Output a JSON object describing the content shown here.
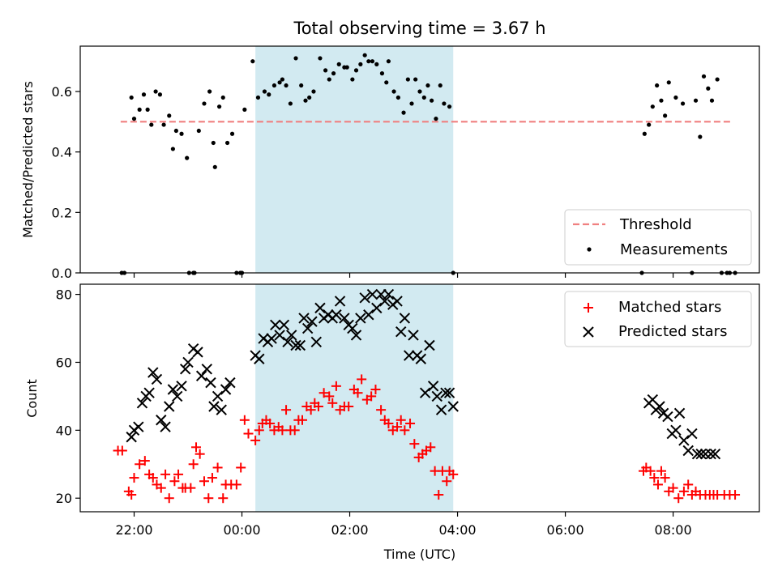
{
  "chart_data": [
    {
      "type": "scatter",
      "title": "Total observing time = 3.67 h",
      "xlabel": "",
      "ylabel": "Matched/Predicted stars",
      "xlim": [
        -3.0,
        9.6
      ],
      "ylim": [
        0,
        0.75
      ],
      "yticks": [
        0.0,
        0.2,
        0.4,
        0.6
      ],
      "ytick_labels": [
        "0.0",
        "0.2",
        "0.4",
        "0.6"
      ],
      "grid": false,
      "legend_position": "lower-right",
      "shaded_region": {
        "x_start": 0.25,
        "x_end": 3.92,
        "color": "#add8e6"
      },
      "colors": {
        "threshold": "#f08080",
        "measurements": "#000000"
      },
      "series": [
        {
          "name": "Threshold",
          "kind": "dashed-line",
          "x": [
            -2.25,
            9.1
          ],
          "y": [
            0.5,
            0.5
          ]
        },
        {
          "name": "Measurements",
          "kind": "points",
          "x": [
            -2.23,
            -2.18,
            -2.05,
            -2.0,
            -1.9,
            -1.82,
            -1.75,
            -1.68,
            -1.6,
            -1.52,
            -1.45,
            -1.35,
            -1.28,
            -1.22,
            -1.12,
            -1.02,
            -0.98,
            -0.9,
            -0.88,
            -0.8,
            -0.7,
            -0.6,
            -0.53,
            -0.5,
            -0.42,
            -0.35,
            -0.27,
            -0.18,
            -0.1,
            -0.03,
            0.0,
            0.05,
            0.2,
            0.3,
            0.42,
            0.5,
            0.6,
            0.7,
            0.75,
            0.82,
            0.9,
            1.0,
            1.1,
            1.18,
            1.25,
            1.33,
            1.45,
            1.55,
            1.62,
            1.7,
            1.8,
            1.9,
            1.95,
            2.05,
            2.12,
            2.2,
            2.28,
            2.35,
            2.42,
            2.5,
            2.6,
            2.68,
            2.72,
            2.82,
            2.9,
            3.0,
            3.08,
            3.15,
            3.22,
            3.3,
            3.38,
            3.45,
            3.52,
            3.6,
            3.68,
            3.75,
            3.85,
            3.92,
            7.42,
            7.47,
            7.55,
            7.62,
            7.7,
            7.78,
            7.85,
            7.92,
            8.05,
            8.18,
            8.35,
            8.42,
            8.5,
            8.57,
            8.65,
            8.72,
            8.82,
            8.9,
            9.0,
            9.05,
            9.15
          ],
          "y": [
            0.0,
            0.0,
            0.58,
            0.51,
            0.54,
            0.59,
            0.54,
            0.49,
            0.6,
            0.59,
            0.49,
            0.52,
            0.41,
            0.47,
            0.46,
            0.38,
            0.0,
            0.0,
            0.0,
            0.47,
            0.56,
            0.6,
            0.43,
            0.35,
            0.55,
            0.58,
            0.43,
            0.46,
            0.0,
            0.0,
            0.0,
            0.54,
            0.7,
            0.58,
            0.6,
            0.59,
            0.62,
            0.63,
            0.64,
            0.62,
            0.56,
            0.71,
            0.62,
            0.57,
            0.58,
            0.6,
            0.71,
            0.67,
            0.64,
            0.66,
            0.69,
            0.68,
            0.68,
            0.64,
            0.67,
            0.69,
            0.72,
            0.7,
            0.7,
            0.69,
            0.66,
            0.63,
            0.7,
            0.6,
            0.58,
            0.53,
            0.64,
            0.56,
            0.64,
            0.6,
            0.58,
            0.62,
            0.57,
            0.51,
            0.62,
            0.56,
            0.55,
            0.0,
            0.0,
            0.46,
            0.49,
            0.55,
            0.62,
            0.57,
            0.52,
            0.63,
            0.58,
            0.56,
            0.0,
            0.57,
            0.45,
            0.65,
            0.61,
            0.57,
            0.64,
            0.0,
            0.0,
            0.0,
            0.0
          ]
        }
      ]
    },
    {
      "type": "scatter",
      "title": "",
      "xlabel": "Time (UTC)",
      "ylabel": "Count",
      "xlim": [
        -3.0,
        9.6
      ],
      "ylim": [
        16,
        83
      ],
      "xticks": [
        -2.0,
        0.0,
        2.0,
        4.0,
        6.0,
        8.0
      ],
      "xtick_labels": [
        "22:00",
        "00:00",
        "02:00",
        "04:00",
        "06:00",
        "08:00"
      ],
      "yticks": [
        20,
        40,
        60,
        80
      ],
      "ytick_labels": [
        "20",
        "40",
        "60",
        "80"
      ],
      "grid": false,
      "legend_position": "upper-right",
      "shaded_region": {
        "x_start": 0.25,
        "x_end": 3.92,
        "color": "#add8e6"
      },
      "colors": {
        "matched": "#ff0000",
        "predicted": "#000000"
      },
      "series": [
        {
          "name": "Matched stars",
          "kind": "plus",
          "x": [
            -2.3,
            -2.22,
            -2.1,
            -2.05,
            -2.0,
            -1.9,
            -1.8,
            -1.72,
            -1.65,
            -1.58,
            -1.5,
            -1.42,
            -1.35,
            -1.25,
            -1.18,
            -1.1,
            -1.05,
            -0.95,
            -0.9,
            -0.85,
            -0.78,
            -0.7,
            -0.62,
            -0.55,
            -0.45,
            -0.35,
            -0.3,
            -0.2,
            -0.1,
            -0.02,
            0.05,
            0.12,
            0.25,
            0.32,
            0.38,
            0.45,
            0.52,
            0.6,
            0.68,
            0.75,
            0.82,
            0.9,
            0.98,
            1.05,
            1.12,
            1.2,
            1.28,
            1.35,
            1.42,
            1.52,
            1.62,
            1.68,
            1.75,
            1.82,
            1.9,
            1.98,
            2.08,
            2.15,
            2.22,
            2.32,
            2.4,
            2.48,
            2.58,
            2.65,
            2.72,
            2.8,
            2.88,
            2.95,
            3.02,
            3.12,
            3.2,
            3.28,
            3.35,
            3.42,
            3.5,
            3.58,
            3.65,
            3.72,
            3.8,
            3.85,
            3.92,
            7.45,
            7.5,
            7.58,
            7.65,
            7.72,
            7.78,
            7.85,
            7.92,
            8.0,
            8.1,
            8.2,
            8.28,
            8.35,
            8.42,
            8.5,
            8.6,
            8.68,
            8.75,
            8.82,
            8.95,
            9.05,
            9.15
          ],
          "y": [
            34,
            34,
            22,
            21,
            26,
            30,
            31,
            27,
            26,
            24,
            23,
            27,
            20,
            25,
            27,
            23,
            23,
            23,
            30,
            35,
            33,
            25,
            20,
            26,
            29,
            20,
            24,
            24,
            24,
            29,
            43,
            39,
            37,
            40,
            42,
            43,
            42,
            40,
            41,
            40,
            46,
            40,
            40,
            43,
            43,
            47,
            46,
            48,
            47,
            51,
            50,
            48,
            53,
            46,
            47,
            47,
            52,
            51,
            55,
            49,
            50,
            52,
            46,
            43,
            42,
            40,
            41,
            43,
            40,
            42,
            36,
            32,
            33,
            34,
            35,
            28,
            21,
            28,
            25,
            28,
            27,
            28,
            29,
            28,
            26,
            24,
            28,
            26,
            22,
            23,
            20,
            22,
            24,
            21,
            22,
            21,
            21,
            21,
            21,
            21,
            21,
            21,
            21
          ],
          "note": ""
        },
        {
          "name": "Predicted stars",
          "kind": "x",
          "x": [
            -2.05,
            -2.0,
            -1.92,
            -1.85,
            -1.78,
            -1.72,
            -1.65,
            -1.58,
            -1.5,
            -1.42,
            -1.35,
            -1.28,
            -1.2,
            -1.12,
            -1.05,
            -1.0,
            -0.9,
            -0.82,
            -0.75,
            -0.65,
            -0.58,
            -0.52,
            -0.45,
            -0.38,
            -0.3,
            -0.22,
            0.25,
            0.32,
            0.4,
            0.48,
            0.55,
            0.62,
            0.7,
            0.78,
            0.85,
            0.92,
            1.0,
            1.08,
            1.15,
            1.22,
            1.3,
            1.38,
            1.45,
            1.52,
            1.6,
            1.68,
            1.75,
            1.82,
            1.9,
            1.98,
            2.05,
            2.12,
            2.2,
            2.28,
            2.35,
            2.42,
            2.5,
            2.58,
            2.65,
            2.72,
            2.8,
            2.88,
            2.95,
            3.02,
            3.1,
            3.18,
            3.25,
            3.32,
            3.4,
            3.48,
            3.55,
            3.62,
            3.7,
            3.78,
            3.85,
            3.92,
            7.55,
            7.62,
            7.68,
            7.75,
            7.82,
            7.9,
            7.98,
            8.05,
            8.12,
            8.2,
            8.28,
            8.35,
            8.45,
            8.52,
            8.6,
            8.7,
            8.78
          ],
          "y": [
            38,
            40,
            41,
            48,
            50,
            51,
            57,
            55,
            43,
            41,
            47,
            52,
            50,
            53,
            58,
            60,
            64,
            63,
            56,
            58,
            54,
            47,
            50,
            46,
            52,
            54,
            62,
            61,
            67,
            66,
            67,
            71,
            68,
            71,
            66,
            68,
            65,
            65,
            73,
            70,
            72,
            66,
            76,
            73,
            74,
            73,
            74,
            78,
            73,
            71,
            70,
            68,
            73,
            79,
            74,
            80,
            76,
            80,
            78,
            80,
            77,
            78,
            69,
            73,
            62,
            68,
            62,
            61,
            51,
            65,
            53,
            50,
            46,
            51,
            51,
            47,
            48,
            49,
            46,
            47,
            45,
            44,
            39,
            40,
            45,
            37,
            34,
            39,
            33,
            33,
            33,
            33,
            33
          ],
          "note": ""
        }
      ]
    }
  ],
  "legend": {
    "top": [
      {
        "label": "Threshold",
        "marker": "dashed-line"
      },
      {
        "label": "Measurements",
        "marker": "dot"
      }
    ],
    "bottom": [
      {
        "label": "Matched stars",
        "marker": "plus"
      },
      {
        "label": "Predicted stars",
        "marker": "x"
      }
    ]
  }
}
